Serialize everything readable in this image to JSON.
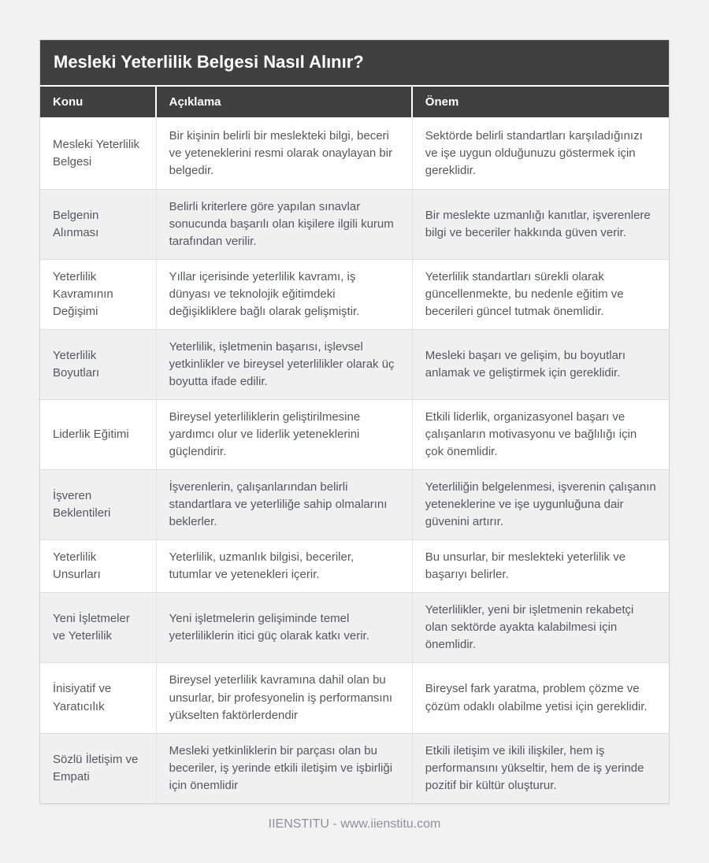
{
  "page": {
    "title": "Mesleki Yeterlilik Belgesi Nasıl Alınır?",
    "footer": "IIENSTITU - www.iienstitu.com",
    "background_color": "#f2f2f2"
  },
  "colors": {
    "header_bg": "#404040",
    "header_text": "#ffffff",
    "row_alt_bg": "#f0f0f0",
    "body_text": "#54585d",
    "divider": "#e3e3e3",
    "footer_text": "#8e9297"
  },
  "table": {
    "columns": [
      "Konu",
      "Açıklama",
      "Önem"
    ],
    "rows": [
      {
        "konu": "Mesleki Yeterlilik Belgesi",
        "aciklama": "Bir kişinin belirli bir meslekteki bilgi, beceri ve yeteneklerini resmi olarak onaylayan bir belgedir.",
        "onem": "Sektörde belirli standartları karşıladığınızı ve işe uygun olduğunuzu göstermek için gereklidir."
      },
      {
        "konu": "Belgenin Alınması",
        "aciklama": "Belirli kriterlere göre yapılan sınavlar sonucunda başarılı olan kişilere ilgili kurum tarafından verilir.",
        "onem": "Bir meslekte uzmanlığı kanıtlar, işverenlere bilgi ve beceriler hakkında güven verir."
      },
      {
        "konu": "Yeterlilik Kavramının Değişimi",
        "aciklama": "Yıllar içerisinde yeterlilik kavramı, iş dünyası ve teknolojik eğitimdeki değişikliklere bağlı olarak gelişmiştir.",
        "onem": "Yeterlilik standartları sürekli olarak güncellenmekte, bu nedenle eğitim ve becerileri güncel tutmak önemlidir."
      },
      {
        "konu": "Yeterlilik Boyutları",
        "aciklama": "Yeterlilik, işletmenin başarısı, işlevsel yetkinlikler ve bireysel yeterlilikler olarak üç boyutta ifade edilir.",
        "onem": "Mesleki başarı ve gelişim, bu boyutları anlamak ve geliştirmek için gereklidir."
      },
      {
        "konu": "Liderlik Eğitimi",
        "aciklama": "Bireysel yeterliliklerin geliştirilmesine yardımcı olur ve liderlik yeteneklerini güçlendirir.",
        "onem": "Etkili liderlik, organizasyonel başarı ve çalışanların motivasyonu ve bağlılığı için çok önemlidir."
      },
      {
        "konu": "İşveren Beklentileri",
        "aciklama": "İşverenlerin, çalışanlarından belirli standartlara ve yeterliliğe sahip olmalarını beklerler.",
        "onem": "Yeterliliğin belgelenmesi, işverenin çalışanın yeteneklerine ve işe uygunluğuna dair güvenini artırır."
      },
      {
        "konu": "Yeterlilik Unsurları",
        "aciklama": "Yeterlilik, uzmanlık bilgisi, beceriler, tutumlar ve yetenekleri içerir.",
        "onem": "Bu unsurlar, bir meslekteki yeterlilik ve başarıyı belirler."
      },
      {
        "konu": "Yeni İşletmeler ve Yeterlilik",
        "aciklama": "Yeni işletmelerin gelişiminde temel yeterliliklerin itici güç olarak katkı verir.",
        "onem": "Yeterlilikler, yeni bir işletmenin rekabetçi olan sektörde ayakta kalabilmesi için önemlidir."
      },
      {
        "konu": "İnisiyatif ve Yaratıcılık",
        "aciklama": "Bireysel yeterlilik kavramına dahil olan bu unsurlar, bir profesyonelin iş performansını yükselten faktörlerdendir",
        "onem": "Bireysel fark yaratma, problem çözme ve çözüm odaklı olabilme yetisi için gereklidir."
      },
      {
        "konu": "Sözlü İletişim ve Empati",
        "aciklama": "Mesleki yetkinliklerin bir parçası olan bu beceriler, iş yerinde etkili iletişim ve işbirliği için önemlidir",
        "onem": "Etkili iletişim ve ikili ilişkiler, hem iş performansını yükseltir, hem de iş yerinde pozitif bir kültür oluşturur."
      }
    ]
  }
}
